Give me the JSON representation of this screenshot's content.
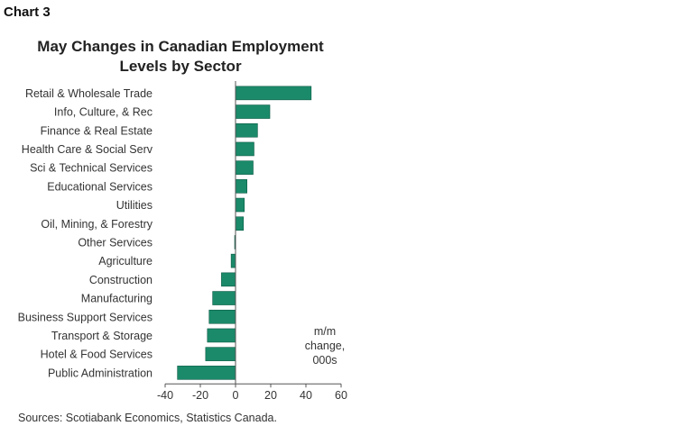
{
  "chart_label": "Chart 3",
  "chart_data": {
    "type": "bar",
    "orientation": "horizontal",
    "title_line1": "May Changes in Canadian Employment",
    "title_line2": "Levels by Sector",
    "categories": [
      "Retail & Wholesale Trade",
      "Info, Culture, & Rec",
      "Finance & Real Estate",
      "Health Care & Social Serv",
      "Sci & Technical Services",
      "Educational Services",
      "Utilities",
      "Oil, Mining, & Forestry",
      "Other Services",
      "Agriculture",
      "Construction",
      "Manufacturing",
      "Business Support Services",
      "Transport & Storage",
      "Hotel & Food Services",
      "Public Administration"
    ],
    "values": [
      43,
      19.5,
      12.5,
      10.5,
      10,
      6.5,
      5,
      4.5,
      -0.5,
      -2.5,
      -8,
      -13,
      -15,
      -16,
      -17,
      -33
    ],
    "xlim": [
      -40,
      60
    ],
    "xticks": [
      "-40",
      "-20",
      "0",
      "20",
      "40",
      "60"
    ],
    "unit_label": [
      "m/m",
      "change,",
      "000s"
    ],
    "bar_color": "#1a8a6a",
    "grid": false
  },
  "source": "Sources: Scotiabank Economics, Statistics Canada."
}
